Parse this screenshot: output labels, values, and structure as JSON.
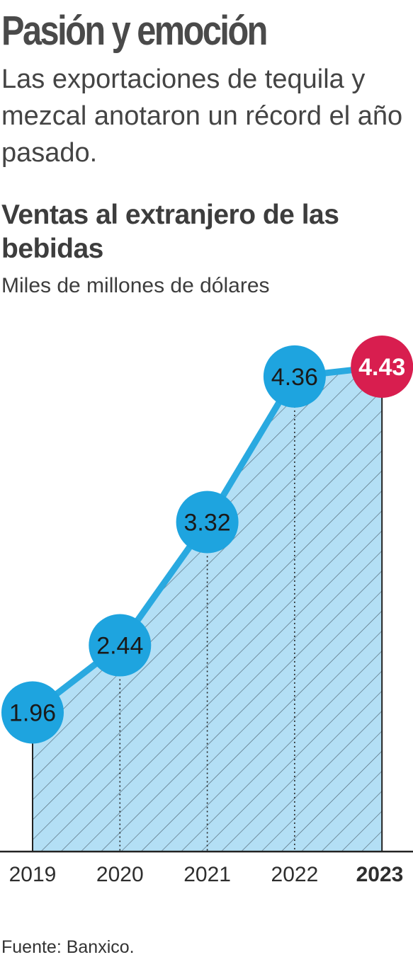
{
  "headline": "Pasión y emoción",
  "dek": "Las exportaciones de tequila y mezcal anotaron un récord el año pasado.",
  "source": "Fuente: Banxico.",
  "colors": {
    "area_fill": "#b3dff5",
    "line": "#29a9e0",
    "marker": "#1ea4df",
    "highlight": "#d81e4f",
    "hatch": "#3a4a55",
    "text": "#3a3a3a"
  },
  "chart_data": {
    "type": "area",
    "title": "Ventas al extranjero de las bebidas",
    "subtitle": "Miles de millones de dólares",
    "categories": [
      "2019",
      "2020",
      "2021",
      "2022",
      "2023"
    ],
    "values": [
      1.96,
      2.44,
      3.32,
      4.36,
      4.43
    ],
    "value_labels": [
      "1.96",
      "2.44",
      "3.32",
      "4.36",
      "4.43"
    ],
    "highlight_index": 4,
    "ylim": [
      1.3,
      4.43
    ],
    "grid": false,
    "legend": "none"
  }
}
